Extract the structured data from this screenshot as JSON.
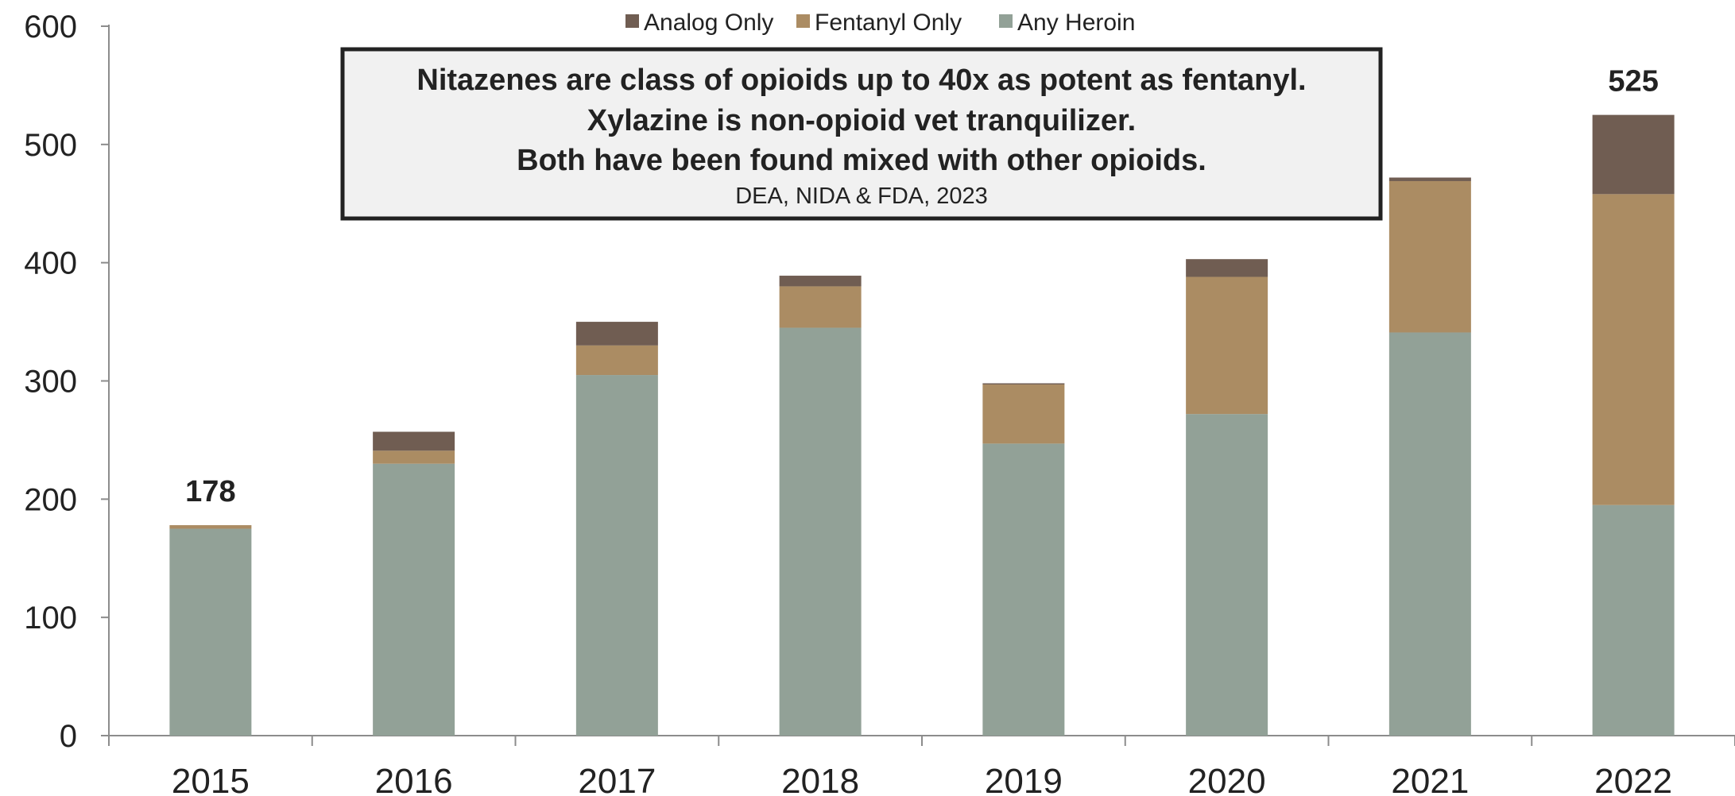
{
  "chart_data": {
    "type": "bar",
    "stacked": true,
    "categories": [
      "2015",
      "2016",
      "2017",
      "2018",
      "2019",
      "2020",
      "2021",
      "2022"
    ],
    "series": [
      {
        "name": "Any Heroin",
        "color": "#92a197",
        "values": [
          175,
          230,
          305,
          345,
          247,
          272,
          341,
          195
        ]
      },
      {
        "name": "Fentanyl Only",
        "color": "#ab8c63",
        "values": [
          3,
          11,
          25,
          35,
          50,
          116,
          128,
          263
        ]
      },
      {
        "name": "Analog Only",
        "color": "#705d52",
        "values": [
          0,
          16,
          20,
          9,
          1,
          15,
          3,
          67
        ]
      }
    ],
    "legend_order": [
      "Analog Only",
      "Fentanyl Only",
      "Any Heroin"
    ],
    "legend_position": "top-center",
    "ylim": [
      0,
      600
    ],
    "yticks": [
      "0",
      "100",
      "200",
      "300",
      "400",
      "500",
      "600"
    ],
    "total_labels": [
      {
        "category": "2015",
        "text": "178"
      },
      {
        "category": "2022",
        "text": "525"
      }
    ],
    "annotation": {
      "lines": [
        "Nitazenes are class of opioids up to 40x as potent as fentanyl.",
        "Xylazine is non-opioid vet tranquilizer.",
        "Both have been found mixed with other opioids."
      ],
      "source": "DEA, NIDA & FDA, 2023"
    },
    "grid": false,
    "title": "",
    "xlabel": "",
    "ylabel": ""
  }
}
